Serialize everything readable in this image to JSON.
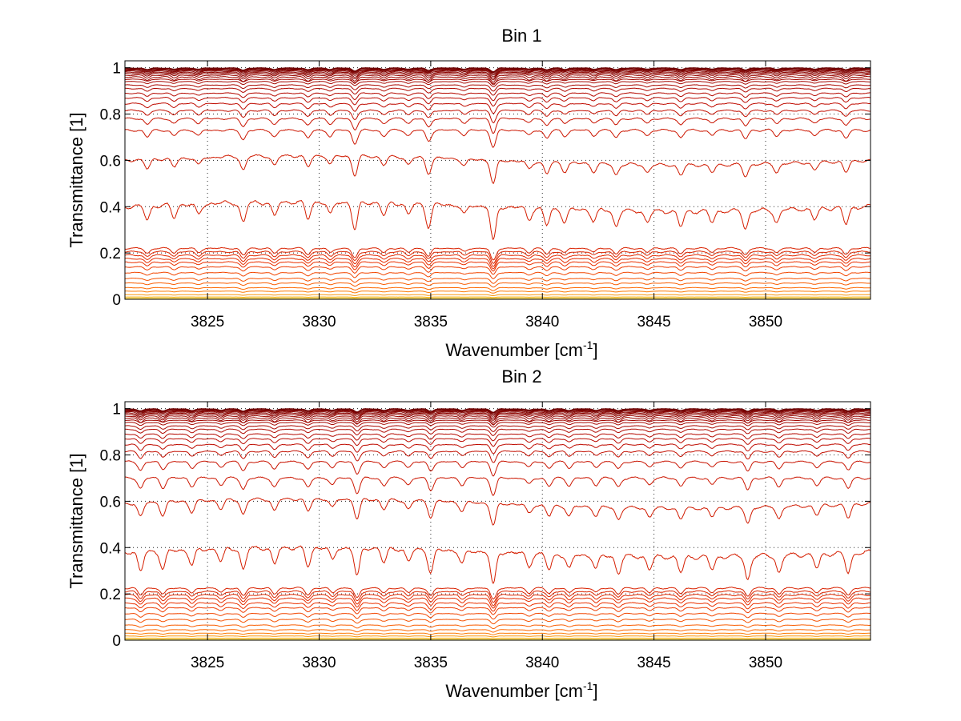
{
  "chart_data": [
    {
      "type": "line",
      "title": "Bin 1",
      "xlabel": "Wavenumber [cm",
      "xlabel_sup": "-1",
      "xlabel_end": "]",
      "ylabel": "Transmittance [1]",
      "xlim": [
        3821.3,
        3854.7
      ],
      "ylim": [
        0,
        1.03
      ],
      "xticks": [
        3825,
        3830,
        3835,
        3840,
        3845,
        3850
      ],
      "yticks": [
        0,
        0.2,
        0.4,
        0.6,
        0.8,
        1
      ],
      "xtick_labels": [
        "3825",
        "3830",
        "3835",
        "3840",
        "3845",
        "3850"
      ],
      "ytick_labels": [
        "0",
        "0.2",
        "0.4",
        "0.6",
        "0.8",
        "1"
      ],
      "grid": true,
      "series_baselines": [
        0.999,
        0.997,
        0.995,
        0.992,
        0.989,
        0.985,
        0.98,
        0.975,
        0.968,
        0.96,
        0.95,
        0.94,
        0.925,
        0.91,
        0.89,
        0.87,
        0.845,
        0.815,
        0.78,
        0.73,
        0.6,
        0.4,
        0.22,
        0.205,
        0.19,
        0.175,
        0.16,
        0.14,
        0.115,
        0.09,
        0.07,
        0.05,
        0.035,
        0.02,
        0.01,
        0.004
      ],
      "absorption_lines": [
        {
          "x": 3822.3,
          "depth": 0.5
        },
        {
          "x": 3823.5,
          "depth": 0.45
        },
        {
          "x": 3824.6,
          "depth": 0.4
        },
        {
          "x": 3826.6,
          "depth": 0.7
        },
        {
          "x": 3828.0,
          "depth": 0.5
        },
        {
          "x": 3829.5,
          "depth": 0.6
        },
        {
          "x": 3830.5,
          "depth": 0.45
        },
        {
          "x": 3831.6,
          "depth": 1.0
        },
        {
          "x": 3832.9,
          "depth": 0.45
        },
        {
          "x": 3834.0,
          "depth": 0.4
        },
        {
          "x": 3834.9,
          "depth": 0.8
        },
        {
          "x": 3836.5,
          "depth": 0.35
        },
        {
          "x": 3837.8,
          "depth": 1.25
        },
        {
          "x": 3839.4,
          "depth": 0.4
        },
        {
          "x": 3840.2,
          "depth": 0.6
        },
        {
          "x": 3841.0,
          "depth": 0.45
        },
        {
          "x": 3842.3,
          "depth": 0.4
        },
        {
          "x": 3843.3,
          "depth": 0.55
        },
        {
          "x": 3844.7,
          "depth": 0.4
        },
        {
          "x": 3846.2,
          "depth": 0.55
        },
        {
          "x": 3847.6,
          "depth": 0.4
        },
        {
          "x": 3849.1,
          "depth": 0.65
        },
        {
          "x": 3850.5,
          "depth": 0.45
        },
        {
          "x": 3852.2,
          "depth": 0.4
        },
        {
          "x": 3853.6,
          "depth": 0.6
        }
      ]
    },
    {
      "type": "line",
      "title": "Bin 2",
      "xlabel": "Wavenumber [cm",
      "xlabel_sup": "-1",
      "xlabel_end": "]",
      "ylabel": "Transmittance [1]",
      "xlim": [
        3821.3,
        3854.7
      ],
      "ylim": [
        0,
        1.03
      ],
      "xticks": [
        3825,
        3830,
        3835,
        3840,
        3845,
        3850
      ],
      "yticks": [
        0,
        0.2,
        0.4,
        0.6,
        0.8,
        1
      ],
      "xtick_labels": [
        "3825",
        "3830",
        "3835",
        "3840",
        "3845",
        "3850"
      ],
      "ytick_labels": [
        "0",
        "0.2",
        "0.4",
        "0.6",
        "0.8",
        "1"
      ],
      "grid": true,
      "series_baselines": [
        0.999,
        0.997,
        0.995,
        0.992,
        0.989,
        0.985,
        0.98,
        0.975,
        0.968,
        0.96,
        0.95,
        0.94,
        0.925,
        0.91,
        0.89,
        0.87,
        0.845,
        0.815,
        0.77,
        0.7,
        0.59,
        0.38,
        0.225,
        0.21,
        0.195,
        0.18,
        0.16,
        0.14,
        0.115,
        0.09,
        0.065,
        0.045,
        0.03,
        0.018,
        0.009,
        0.003
      ],
      "absorption_lines": [
        {
          "x": 3822.0,
          "depth": 0.7
        },
        {
          "x": 3823.0,
          "depth": 0.65
        },
        {
          "x": 3824.3,
          "depth": 0.55
        },
        {
          "x": 3825.6,
          "depth": 0.45
        },
        {
          "x": 3826.6,
          "depth": 0.75
        },
        {
          "x": 3828.0,
          "depth": 0.6
        },
        {
          "x": 3829.5,
          "depth": 0.65
        },
        {
          "x": 3830.6,
          "depth": 0.45
        },
        {
          "x": 3831.7,
          "depth": 1.0
        },
        {
          "x": 3832.9,
          "depth": 0.5
        },
        {
          "x": 3834.0,
          "depth": 0.45
        },
        {
          "x": 3835.0,
          "depth": 0.8
        },
        {
          "x": 3836.4,
          "depth": 0.45
        },
        {
          "x": 3837.8,
          "depth": 1.15
        },
        {
          "x": 3839.4,
          "depth": 0.45
        },
        {
          "x": 3840.3,
          "depth": 0.55
        },
        {
          "x": 3841.2,
          "depth": 0.5
        },
        {
          "x": 3842.4,
          "depth": 0.45
        },
        {
          "x": 3843.4,
          "depth": 0.6
        },
        {
          "x": 3844.8,
          "depth": 0.45
        },
        {
          "x": 3846.2,
          "depth": 0.55
        },
        {
          "x": 3847.6,
          "depth": 0.45
        },
        {
          "x": 3849.2,
          "depth": 0.8
        },
        {
          "x": 3850.6,
          "depth": 0.6
        },
        {
          "x": 3852.3,
          "depth": 0.5
        },
        {
          "x": 3853.7,
          "depth": 0.7
        }
      ]
    }
  ]
}
